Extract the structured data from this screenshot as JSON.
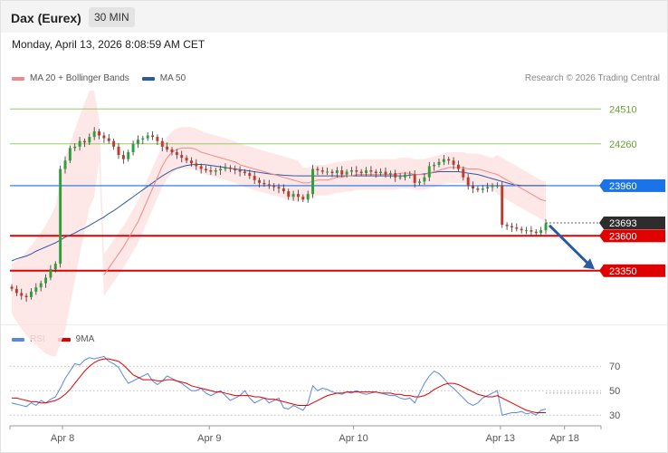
{
  "header": {
    "instrument": "Dax (Eurex)",
    "timeframe": "30 MIN"
  },
  "datetime": "Monday, April 13, 2026 8:08:59 AM CET",
  "credit": "Research © 2026 Trading Central",
  "legend_main": [
    {
      "label": "MA 20 + Bollinger Bands",
      "color": "#f08a8a"
    },
    {
      "label": "MA 50",
      "color": "#2c5aa0"
    }
  ],
  "legend_rsi": [
    {
      "label": "RSI",
      "color": "#5b86e5"
    },
    {
      "label": "9MA",
      "color": "#e00000"
    }
  ],
  "colors": {
    "up": "#2e9e3a",
    "down": "#c0392b",
    "ma20": "#f08a8a",
    "ma50": "#2c5aa0",
    "band": "#fde3e3",
    "resistance": "#9ccc65",
    "pivot": "#1a73e8",
    "support": "#e00000",
    "last": "#2d2d2d",
    "arrow": "#2c5aa0"
  },
  "chart_data": [
    {
      "type": "candlestick",
      "title": "Dax (Eurex)",
      "timeframe": "30 MIN",
      "x_ticks": [
        "Apr 8",
        "Apr 9",
        "Apr 10",
        "Apr 13",
        "Apr 18"
      ],
      "ylim": [
        23030,
        24720
      ],
      "levels": [
        {
          "value": 24510,
          "label": "24510",
          "kind": "resistance"
        },
        {
          "value": 24260,
          "label": "24260",
          "kind": "resistance"
        },
        {
          "value": 23960,
          "label": "23960",
          "kind": "pivot"
        },
        {
          "value": 23693,
          "label": "23693",
          "kind": "last"
        },
        {
          "value": 23600,
          "label": "23600",
          "kind": "support"
        },
        {
          "value": 23350,
          "label": "23350",
          "kind": "support"
        }
      ],
      "close": [
        23220,
        23190,
        23170,
        23160,
        23200,
        23230,
        23260,
        23300,
        23360,
        23400,
        24080,
        24140,
        24230,
        24240,
        24280,
        24270,
        24310,
        24350,
        24320,
        24300,
        24280,
        24240,
        24180,
        24150,
        24200,
        24260,
        24290,
        24300,
        24320,
        24310,
        24280,
        24240,
        24220,
        24200,
        24180,
        24160,
        24140,
        24120,
        24100,
        24080,
        24070,
        24060,
        24070,
        24080,
        24090,
        24080,
        24070,
        24060,
        24050,
        24030,
        24000,
        23980,
        23970,
        23960,
        23950,
        23940,
        23920,
        23880,
        23900,
        23880,
        23860,
        23900,
        24080,
        24070,
        24060,
        24060,
        24050,
        24070,
        24040,
        24060,
        24070,
        24060,
        24050,
        24070,
        24060,
        24050,
        24060,
        24040,
        24050,
        24020,
        24020,
        24040,
        24040,
        23980,
        23990,
        24020,
        24100,
        24110,
        24130,
        24150,
        24140,
        24110,
        24080,
        24020,
        23960,
        23940,
        23930,
        23940,
        23950,
        23960,
        23960,
        23680,
        23670,
        23660,
        23650,
        23640,
        23640,
        23630,
        23620,
        23640,
        23690
      ],
      "ma20": [
        null,
        null,
        null,
        null,
        null,
        null,
        null,
        null,
        null,
        null,
        null,
        null,
        null,
        null,
        null,
        null,
        null,
        null,
        null,
        23320,
        23370,
        23420,
        23470,
        23520,
        23580,
        23640,
        23700,
        23780,
        23860,
        23940,
        24020,
        24100,
        24160,
        24200,
        24220,
        24230,
        24230,
        24230,
        24220,
        24200,
        24190,
        24180,
        24170,
        24160,
        24150,
        24140,
        24130,
        24110,
        24100,
        24090,
        24080,
        24070,
        24060,
        24050,
        24040,
        24030,
        24020,
        24010,
        24000,
        23990,
        23980,
        23980,
        23990,
        24000,
        24000,
        24000,
        24010,
        24020,
        24020,
        24030,
        24030,
        24040,
        24040,
        24040,
        24040,
        24040,
        24040,
        24040,
        24040,
        24040,
        24050,
        24050,
        24050,
        24040,
        24040,
        24040,
        24050,
        24060,
        24070,
        24080,
        24090,
        24090,
        24090,
        24090,
        24080,
        24080,
        24080,
        24070,
        24060,
        24050,
        24040,
        24020,
        24000,
        23980,
        23960,
        23940,
        23920,
        23900,
        23880,
        23860,
        23850
      ],
      "ma50": [
        23420,
        23435,
        23445,
        23455,
        23470,
        23490,
        23505,
        23520,
        23535,
        23550,
        23570,
        23590,
        23605,
        23620,
        23640,
        23655,
        23675,
        23695,
        23715,
        23735,
        23760,
        23780,
        23805,
        23830,
        23855,
        23880,
        23905,
        23930,
        23955,
        23980,
        24005,
        24030,
        24050,
        24070,
        24085,
        24095,
        24105,
        24110,
        24112,
        24112,
        24110,
        24105,
        24100,
        24095,
        24090,
        24085,
        24080,
        24075,
        24070,
        24065,
        24060,
        24055,
        24050,
        24045,
        24040,
        24038,
        24035,
        24033,
        24031,
        24030,
        24030,
        24030,
        24030,
        24030,
        24030,
        24030,
        24030,
        24030,
        24030,
        24030,
        24030,
        24030,
        24030,
        24030,
        24030,
        24030,
        24030,
        24030,
        24030,
        24030,
        24030,
        24030,
        24035,
        24040,
        24040,
        24045,
        24050,
        24055,
        24060,
        24060,
        24060,
        24060,
        24060,
        24055,
        24050,
        24045,
        24040,
        24030,
        24020,
        24010,
        24000,
        23990,
        23980,
        23970,
        23965,
        23960,
        23960,
        23960,
        23960,
        23960,
        23960
      ]
    },
    {
      "type": "line",
      "title": "RSI",
      "yticks": [
        30,
        50,
        70
      ],
      "ylim": [
        25,
        82
      ],
      "series": [
        {
          "name": "RSI",
          "values": [
            40,
            39,
            38,
            37,
            40,
            38,
            42,
            40,
            43,
            45,
            52,
            60,
            66,
            72,
            71,
            75,
            77,
            76,
            77,
            78,
            74,
            72,
            69,
            62,
            56,
            58,
            60,
            62,
            64,
            58,
            55,
            58,
            62,
            60,
            58,
            56,
            53,
            50,
            50,
            52,
            48,
            46,
            48,
            50,
            46,
            42,
            44,
            46,
            50,
            44,
            40,
            42,
            44,
            40,
            42,
            44,
            36,
            35,
            38,
            36,
            34,
            40,
            54,
            50,
            52,
            51,
            49,
            48,
            47,
            49,
            48,
            50,
            48,
            47,
            48,
            49,
            48,
            47,
            46,
            46,
            44,
            43,
            44,
            40,
            48,
            56,
            62,
            66,
            64,
            60,
            55,
            52,
            48,
            44,
            40,
            38,
            40,
            44,
            46,
            48,
            50,
            30,
            31,
            32,
            32,
            33,
            31,
            32,
            30,
            34,
            35
          ]
        },
        {
          "name": "9MA",
          "values": [
            44,
            44,
            43,
            42,
            41,
            41,
            40,
            40,
            41,
            42,
            44,
            47,
            51,
            56,
            61,
            66,
            70,
            73,
            75,
            76,
            76,
            75,
            74,
            71,
            67,
            63,
            61,
            59,
            59,
            59,
            58,
            58,
            59,
            59,
            58,
            57,
            56,
            54,
            53,
            52,
            51,
            50,
            49,
            49,
            48,
            47,
            46,
            46,
            46,
            46,
            45,
            45,
            44,
            43,
            43,
            42,
            41,
            40,
            39,
            38,
            38,
            38,
            40,
            42,
            44,
            46,
            47,
            48,
            48,
            49,
            49,
            49,
            49,
            49,
            49,
            49,
            48,
            48,
            48,
            47,
            47,
            46,
            46,
            45,
            45,
            46,
            48,
            51,
            53,
            55,
            56,
            56,
            55,
            53,
            51,
            49,
            47,
            46,
            45,
            45,
            46,
            44,
            42,
            40,
            38,
            36,
            34,
            33,
            32,
            32,
            32
          ]
        }
      ]
    }
  ]
}
